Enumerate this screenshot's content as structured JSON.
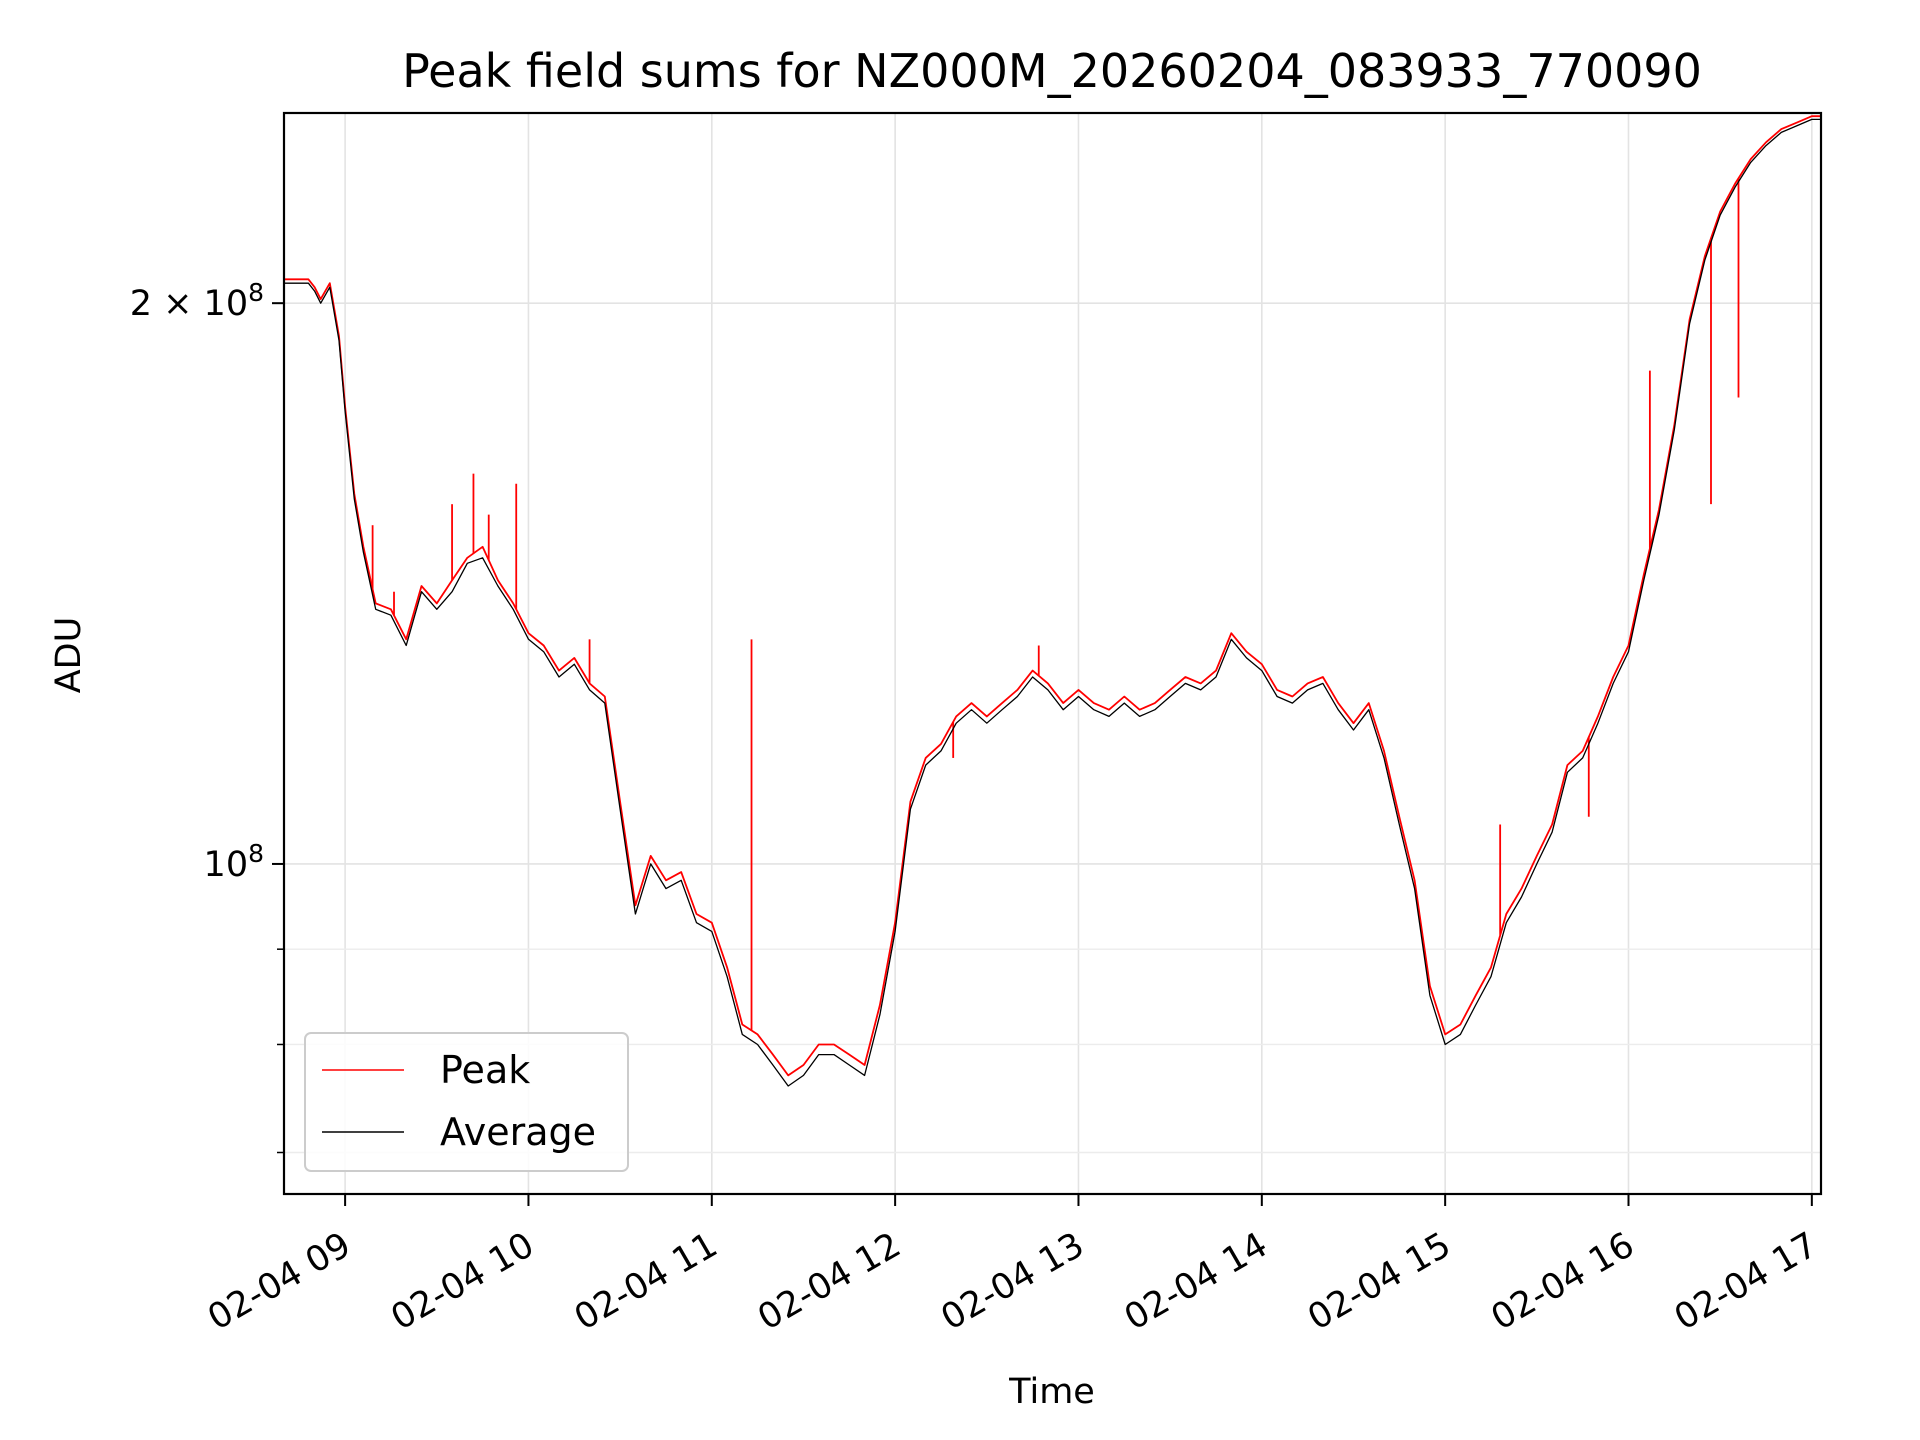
{
  "chart_data": {
    "type": "line",
    "title": "Peak field sums for NZ000M_20260204_083933_770090",
    "xlabel": "Time",
    "ylabel": "ADU",
    "yscale": "log",
    "ylim": [
      66500000,
      253000000
    ],
    "xlim": [
      "02-04 08:40",
      "02-04 17:03"
    ],
    "grid": true,
    "legend_position": "lower-left",
    "x_ticks": [
      "02-04 09",
      "02-04 10",
      "02-04 11",
      "02-04 12",
      "02-04 13",
      "02-04 14",
      "02-04 15",
      "02-04 16",
      "02-04 17"
    ],
    "y_ticks": [
      {
        "value": 200000000,
        "label": "2 × 10^8"
      },
      {
        "value": 100000000,
        "label": "10^8"
      }
    ],
    "x": [
      "08:40",
      "08:48",
      "08:50",
      "08:52",
      "08:55",
      "08:58",
      "09:00",
      "09:03",
      "09:06",
      "09:10",
      "09:15",
      "09:20",
      "09:25",
      "09:30",
      "09:35",
      "09:40",
      "09:45",
      "09:50",
      "09:55",
      "10:00",
      "10:05",
      "10:10",
      "10:15",
      "10:20",
      "10:25",
      "10:30",
      "10:35",
      "10:40",
      "10:45",
      "10:50",
      "10:55",
      "11:00",
      "11:05",
      "11:10",
      "11:15",
      "11:20",
      "11:25",
      "11:30",
      "11:35",
      "11:40",
      "11:45",
      "11:50",
      "11:55",
      "12:00",
      "12:05",
      "12:10",
      "12:15",
      "12:20",
      "12:25",
      "12:30",
      "12:35",
      "12:40",
      "12:45",
      "12:50",
      "12:55",
      "13:00",
      "13:05",
      "13:10",
      "13:15",
      "13:20",
      "13:25",
      "13:30",
      "13:35",
      "13:40",
      "13:45",
      "13:50",
      "13:55",
      "14:00",
      "14:05",
      "14:10",
      "14:15",
      "14:20",
      "14:25",
      "14:30",
      "14:35",
      "14:40",
      "14:45",
      "14:50",
      "14:55",
      "15:00",
      "15:05",
      "15:10",
      "15:15",
      "15:20",
      "15:25",
      "15:30",
      "15:35",
      "15:40",
      "15:45",
      "15:50",
      "15:55",
      "16:00",
      "16:05",
      "16:10",
      "16:15",
      "16:20",
      "16:25",
      "16:30",
      "16:35",
      "16:40",
      "16:45",
      "16:50",
      "16:55",
      "17:00",
      "17:03"
    ],
    "series": [
      {
        "name": "Peak",
        "color": "#ff0000",
        "values": [
          206,
          206,
          204,
          201,
          205,
          192,
          176,
          158,
          148,
          138,
          137,
          132,
          141,
          138,
          142,
          146,
          148,
          142,
          138,
          133,
          131,
          127,
          129,
          125,
          123,
          108,
          95,
          101,
          98,
          99,
          94,
          93,
          88,
          82,
          81,
          79,
          77,
          78,
          80,
          80,
          79,
          78,
          84,
          93,
          108,
          114,
          116,
          120,
          122,
          120,
          122,
          124,
          127,
          125,
          122,
          124,
          122,
          121,
          123,
          121,
          122,
          124,
          126,
          125,
          127,
          133,
          130,
          128,
          124,
          123,
          125,
          126,
          122,
          119,
          122,
          115,
          106,
          98,
          86,
          81,
          82,
          85,
          88,
          94,
          97,
          101,
          105,
          113,
          115,
          120,
          126,
          131,
          143,
          155,
          172,
          196,
          212,
          224,
          232,
          239,
          244,
          248,
          250,
          252,
          252
        ],
        "spikes": [
          {
            "x": "09:09",
            "value": 152
          },
          {
            "x": "09:16",
            "value": 140
          },
          {
            "x": "09:35",
            "value": 156
          },
          {
            "x": "09:42",
            "value": 162
          },
          {
            "x": "09:47",
            "value": 154
          },
          {
            "x": "09:56",
            "value": 160
          },
          {
            "x": "10:20",
            "value": 132
          },
          {
            "x": "11:13",
            "value": 132
          },
          {
            "x": "12:19",
            "value": 114
          },
          {
            "x": "12:47",
            "value": 131
          },
          {
            "x": "15:18",
            "value": 105
          },
          {
            "x": "15:47",
            "value": 106
          },
          {
            "x": "16:07",
            "value": 184
          },
          {
            "x": "16:27",
            "value": 156
          },
          {
            "x": "16:36",
            "value": 178
          }
        ]
      },
      {
        "name": "Average",
        "color": "#000000",
        "values": [
          205,
          205,
          203,
          200,
          204,
          191,
          175,
          157,
          147,
          137,
          136,
          131,
          140,
          137,
          140,
          145,
          146,
          141,
          137,
          132,
          130,
          126,
          128,
          124,
          122,
          107,
          94,
          100,
          97,
          98,
          93,
          92,
          87,
          81,
          80,
          78,
          76,
          77,
          79,
          79,
          78,
          77,
          83,
          92,
          107,
          113,
          115,
          119,
          121,
          119,
          121,
          123,
          126,
          124,
          121,
          123,
          121,
          120,
          122,
          120,
          121,
          123,
          125,
          124,
          126,
          132,
          129,
          127,
          123,
          122,
          124,
          125,
          121,
          118,
          121,
          114,
          105,
          97,
          85,
          80,
          81,
          84,
          87,
          93,
          96,
          100,
          104,
          112,
          114,
          119,
          125,
          130,
          142,
          154,
          171,
          195,
          211,
          223,
          231,
          238,
          243,
          247,
          249,
          251,
          251
        ]
      }
    ],
    "value_unit_note": "values in millions of ADU"
  }
}
